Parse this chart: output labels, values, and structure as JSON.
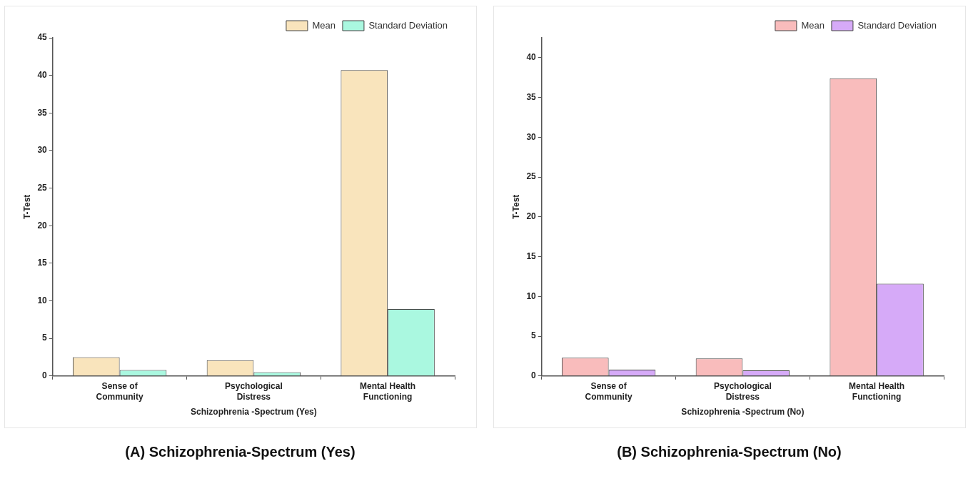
{
  "chart_data": [
    {
      "type": "bar",
      "title": "(A) Schizophrenia-Spectrum (Yes)",
      "xlabel": "Schizophrenia -Spectrum (Yes)",
      "ylabel": "T-Test",
      "categories": [
        "Sense of Community",
        "Psychological Distress",
        "Mental Health Functioning"
      ],
      "series": [
        {
          "name": "Mean",
          "color": "#f9e4bc",
          "values": [
            2.5,
            2.1,
            40.7
          ]
        },
        {
          "name": "Standard Deviation",
          "color": "#aaf8e0",
          "values": [
            0.8,
            0.5,
            8.9
          ]
        }
      ],
      "ylim": [
        0,
        45
      ],
      "yticks": [
        0,
        5,
        10,
        15,
        20,
        25,
        30,
        35,
        40,
        45
      ],
      "grid": false,
      "legend": "top right"
    },
    {
      "type": "bar",
      "title": "(B) Schizophrenia-Spectrum (No)",
      "xlabel": "Schizophrenia -Spectrum (No)",
      "ylabel": "T-Test",
      "categories": [
        "Sense of Community",
        "Psychological Distress",
        "Mental Health Functioning"
      ],
      "series": [
        {
          "name": "Mean",
          "color": "#f9bcbc",
          "values": [
            2.3,
            2.2,
            37.4
          ]
        },
        {
          "name": "Standard Deviation",
          "color": "#d6aaf8",
          "values": [
            0.8,
            0.7,
            11.6
          ]
        }
      ],
      "ylim": [
        0,
        42.5
      ],
      "yticks": [
        0,
        5,
        10,
        15,
        20,
        25,
        30,
        35,
        40
      ],
      "grid": false,
      "legend": "top right"
    }
  ]
}
